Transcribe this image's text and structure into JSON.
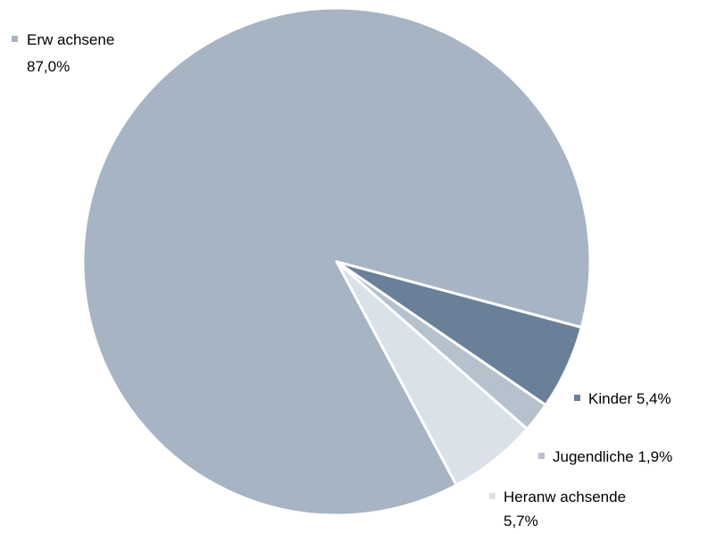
{
  "chart_data": {
    "type": "pie",
    "slices": [
      {
        "name": "Kinder",
        "value": 5.4,
        "label_text": "Kinder 5,4%",
        "color": "#6a8099"
      },
      {
        "name": "Jugendliche",
        "value": 1.9,
        "label_text": "Jugendliche 1,9%",
        "color": "#b5c1cd"
      },
      {
        "name": "Heranw achsende",
        "value": 5.7,
        "label_lines": [
          "Heranw achsende",
          "5,7%"
        ],
        "color": "#dbe1e8"
      },
      {
        "name": "Erw achsene",
        "value": 87.0,
        "label_lines": [
          "Erw achsene",
          "87,0%"
        ],
        "color": "#a6b4c3"
      }
    ],
    "legend": "none",
    "data_labels": "outside with color marker"
  }
}
